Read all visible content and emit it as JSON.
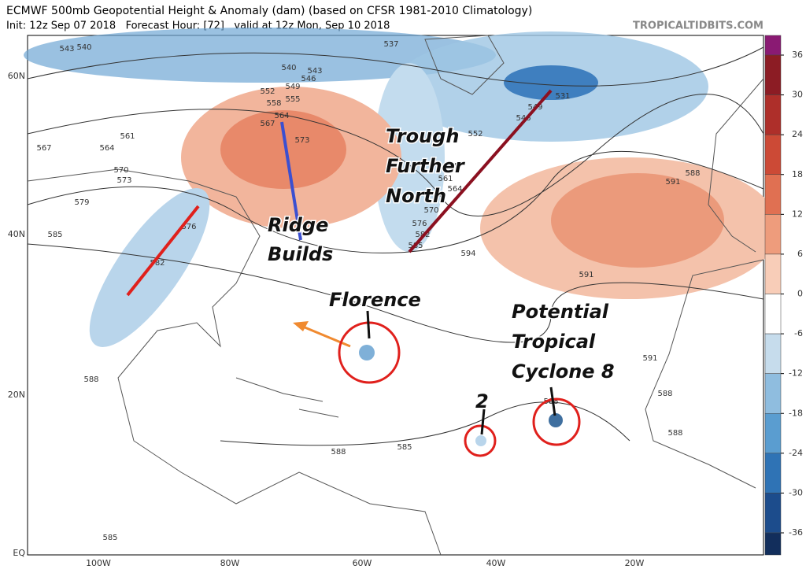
{
  "header": {
    "title": "ECMWF 500mb Geopotential Height & Anomaly (dam) (based on CFSR 1981-2010 Climatology)",
    "subtitle": "Init: 12z Sep 07 2018   Forecast Hour: [72]   valid at 12z Mon, Sep 10 2018",
    "watermark": "TROPICALTIDBITS.COM"
  },
  "map": {
    "lat_labels": [
      "60N",
      "40N",
      "20N",
      "EQ"
    ],
    "lon_labels": [
      "100W",
      "80W",
      "60W",
      "40W",
      "20W"
    ],
    "contour_labels": [
      "543",
      "540",
      "537",
      "540",
      "543",
      "546",
      "549",
      "552",
      "558",
      "555",
      "564",
      "567",
      "573",
      "567",
      "561",
      "564",
      "570",
      "573",
      "579",
      "585",
      "576",
      "582",
      "531",
      "549",
      "546",
      "552",
      "555",
      "561",
      "564",
      "570",
      "576",
      "582",
      "585",
      "588",
      "591",
      "594",
      "591",
      "591",
      "588",
      "588",
      "588",
      "585",
      "585",
      "588",
      "588"
    ]
  },
  "colorbar": {
    "ticks": [
      36,
      30,
      24,
      18,
      12,
      6,
      0,
      -6,
      -12,
      -18,
      -24,
      -30,
      -36
    ],
    "colors": [
      "#8a1a73",
      "#8c1c24",
      "#ae2f2a",
      "#cc4a36",
      "#e07052",
      "#ee9c7c",
      "#f8cdb8",
      "#ffffff",
      "#c6dcec",
      "#8fbddf",
      "#5a9dd0",
      "#2f73b5",
      "#1c4c8c",
      "#122e5c"
    ]
  },
  "annotations": {
    "trough": [
      "Trough",
      "Further",
      "North"
    ],
    "ridge": [
      "Ridge",
      "Builds"
    ],
    "florence": "Florence",
    "ptc": [
      "Potential",
      "Tropical",
      "Cyclone 8"
    ],
    "two": "2"
  }
}
